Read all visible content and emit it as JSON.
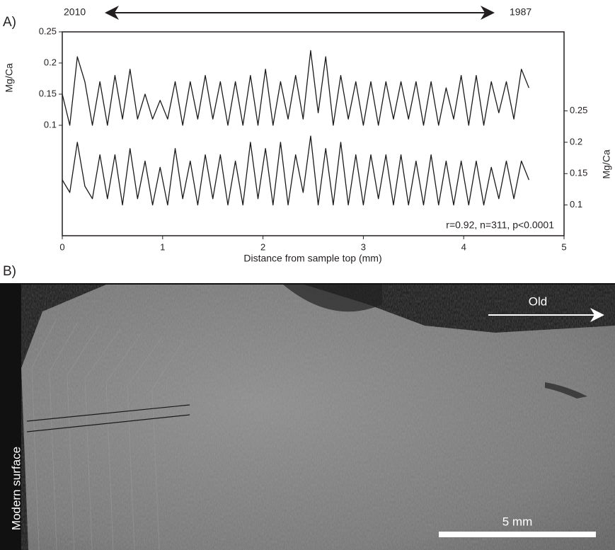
{
  "chart_data": {
    "type": "line",
    "panel_label": "A)",
    "top_left_label": "2010",
    "top_right_label": "1987",
    "annotation": "r=0.92, n=311,  p<0.0001",
    "xlabel": "Distance from sample top (mm)",
    "ylabel": "Mg/Ca",
    "y2label": "Mg/Ca",
    "x": [
      0,
      0.075,
      0.15,
      0.225,
      0.3,
      0.375,
      0.45,
      0.525,
      0.6,
      0.675,
      0.75,
      0.825,
      0.9,
      0.975,
      1.05,
      1.125,
      1.2,
      1.275,
      1.35,
      1.425,
      1.5,
      1.575,
      1.65,
      1.725,
      1.8,
      1.875,
      1.95,
      2.025,
      2.1,
      2.175,
      2.25,
      2.325,
      2.4,
      2.475,
      2.55,
      2.625,
      2.7,
      2.775,
      2.85,
      2.925,
      3.0,
      3.075,
      3.15,
      3.225,
      3.3,
      3.375,
      3.45,
      3.525,
      3.6,
      3.675,
      3.75,
      3.825,
      3.9,
      3.975,
      4.05,
      4.125,
      4.2,
      4.275,
      4.35,
      4.425,
      4.5,
      4.575,
      4.65
    ],
    "series": [
      {
        "color": "#1a1a1a",
        "values": [
          0.15,
          0.1,
          0.21,
          0.17,
          0.1,
          0.17,
          0.1,
          0.18,
          0.11,
          0.19,
          0.11,
          0.15,
          0.11,
          0.14,
          0.11,
          0.17,
          0.1,
          0.17,
          0.11,
          0.18,
          0.11,
          0.17,
          0.1,
          0.17,
          0.1,
          0.18,
          0.1,
          0.19,
          0.1,
          0.17,
          0.11,
          0.18,
          0.11,
          0.22,
          0.12,
          0.21,
          0.1,
          0.18,
          0.11,
          0.17,
          0.1,
          0.17,
          0.1,
          0.17,
          0.11,
          0.17,
          0.11,
          0.17,
          0.1,
          0.17,
          0.1,
          0.16,
          0.11,
          0.18,
          0.1,
          0.18,
          0.1,
          0.17,
          0.12,
          0.17,
          0.11,
          0.19,
          0.16
        ]
      },
      {
        "color": "#1a1a1a",
        "axis": "y2",
        "values": [
          0.14,
          0.12,
          0.2,
          0.13,
          0.11,
          0.18,
          0.11,
          0.18,
          0.1,
          0.19,
          0.11,
          0.17,
          0.1,
          0.16,
          0.1,
          0.19,
          0.11,
          0.17,
          0.1,
          0.18,
          0.11,
          0.18,
          0.1,
          0.17,
          0.1,
          0.2,
          0.11,
          0.19,
          0.1,
          0.2,
          0.1,
          0.18,
          0.12,
          0.21,
          0.1,
          0.19,
          0.1,
          0.2,
          0.1,
          0.18,
          0.1,
          0.18,
          0.11,
          0.18,
          0.1,
          0.18,
          0.1,
          0.17,
          0.1,
          0.18,
          0.1,
          0.17,
          0.1,
          0.17,
          0.1,
          0.17,
          0.1,
          0.16,
          0.11,
          0.17,
          0.11,
          0.17,
          0.14
        ]
      }
    ],
    "xlim": [
      0,
      5
    ],
    "xticks": [
      0,
      1,
      2,
      3,
      4,
      5
    ],
    "ylim": [
      -0.0773,
      0.25
    ],
    "yticks": [
      0.1,
      0.15,
      0.2,
      0.25
    ],
    "y2lim": [
      0.051,
      0.376
    ],
    "y2ticks": [
      0.1,
      0.15,
      0.2,
      0.25
    ]
  },
  "photo_panel": {
    "panel_label": "B)",
    "arrow_label": "Old",
    "surface_label": "Modern surface",
    "scale_label": "5 mm"
  }
}
